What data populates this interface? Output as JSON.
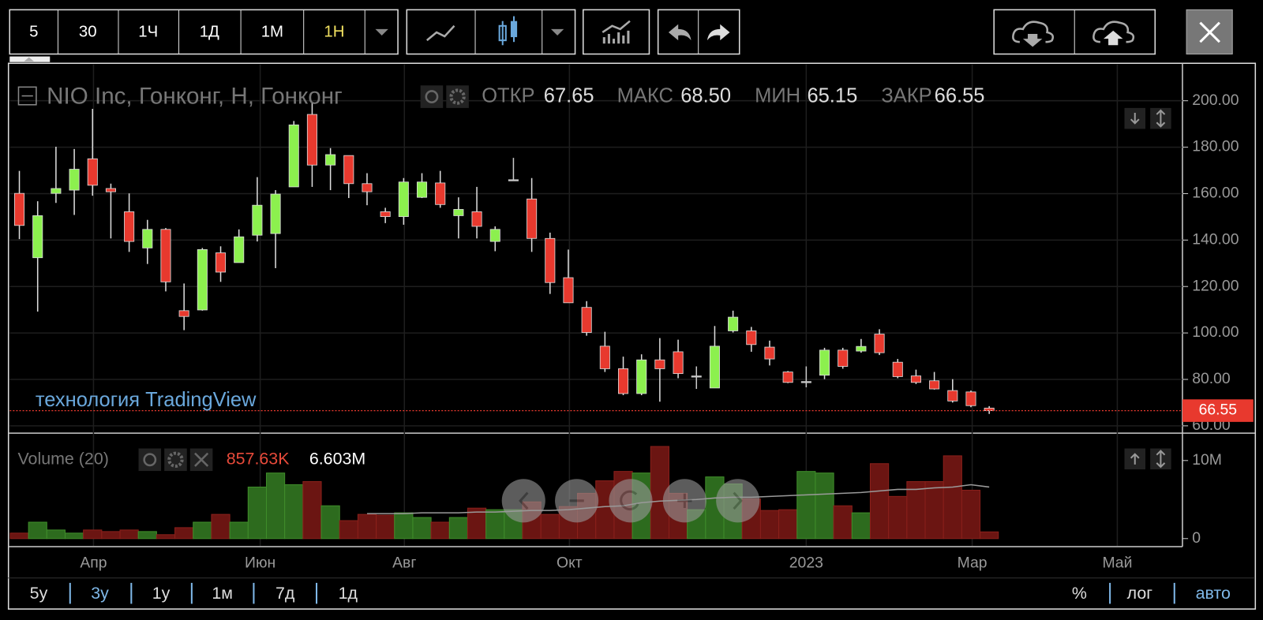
{
  "toolbar": {
    "intervals": [
      "5",
      "30",
      "1Ч",
      "1Д",
      "1М",
      "1Н"
    ]
  },
  "chart_data": [
    {
      "type": "candlestick",
      "title": "NIO Inc, Гонконг, Н, Гонконг",
      "ohlc_labels": [
        "ОТКР",
        "МАКС",
        "МИН",
        "ЗАКР"
      ],
      "header_values": [
        "67.65",
        "68.50",
        "65.15",
        "66.55"
      ],
      "open": [
        160.1,
        132.4,
        160.1,
        161.5,
        175.0,
        162.2,
        152.2,
        136.6,
        144.6,
        109.6,
        109.9,
        134.5,
        130.3,
        142.1,
        142.8,
        162.9,
        194.1,
        172.3,
        176.4,
        164.3,
        152.2,
        150.1,
        158.4,
        164.6,
        150.5,
        152.2,
        139.4,
        166.0,
        157.7,
        140.7,
        123.8,
        111.0,
        94.3,
        84.6,
        73.9,
        88.4,
        91.9,
        81.5,
        76.3,
        100.9,
        100.9,
        93.9,
        83.2,
        79.1,
        81.8,
        92.6,
        92.2,
        99.5,
        87.4,
        81.5,
        79.4,
        75.2,
        74.6,
        67.65
      ],
      "high": [
        169.8,
        156.7,
        180.2,
        179.2,
        196.5,
        164.3,
        160.1,
        148.7,
        145.2,
        121.3,
        136.6,
        137.3,
        144.6,
        167.1,
        161.5,
        191.3,
        199.3,
        179.6,
        176.4,
        168.8,
        153.9,
        166.7,
        168.8,
        169.8,
        158.4,
        162.9,
        145.9,
        175.4,
        166.7,
        143.2,
        135.9,
        113.7,
        100.5,
        89.8,
        90.8,
        97.8,
        97.1,
        85.6,
        103.0,
        109.6,
        102.6,
        96.7,
        83.6,
        85.6,
        93.6,
        93.6,
        97.4,
        101.6,
        88.8,
        84.2,
        83.2,
        80.1,
        75.2,
        68.5
      ],
      "low": [
        140.4,
        109.2,
        156.0,
        150.8,
        159.1,
        140.7,
        134.9,
        129.7,
        117.9,
        101.2,
        109.6,
        122.0,
        130.3,
        139.4,
        127.9,
        162.9,
        162.9,
        161.5,
        158.1,
        155.0,
        147.3,
        146.6,
        158.1,
        153.9,
        140.7,
        140.7,
        135.2,
        165.7,
        134.9,
        116.8,
        113.0,
        98.8,
        83.2,
        73.2,
        73.2,
        70.4,
        80.5,
        75.9,
        76.3,
        100.2,
        91.9,
        86.0,
        78.4,
        76.6,
        80.1,
        84.6,
        91.5,
        90.5,
        80.5,
        78.0,
        75.6,
        70.0,
        68.0,
        65.15
      ],
      "close": [
        146.3,
        150.5,
        162.2,
        170.5,
        163.6,
        160.8,
        139.4,
        144.6,
        122.0,
        107.1,
        135.9,
        126.2,
        141.4,
        155.0,
        159.8,
        189.6,
        172.3,
        176.8,
        164.3,
        160.8,
        150.1,
        165.0,
        165.0,
        155.3,
        153.2,
        145.9,
        144.6,
        166.0,
        140.7,
        121.7,
        113.0,
        100.2,
        84.6,
        73.9,
        88.4,
        84.6,
        82.5,
        81.5,
        94.3,
        106.8,
        95.0,
        88.8,
        78.7,
        79.1,
        92.6,
        85.6,
        94.2,
        91.5,
        81.2,
        78.7,
        75.9,
        70.7,
        68.7,
        66.55
      ],
      "up_color": "#8cf04e",
      "down_color": "#e8392e",
      "doji_color": "#c8c8c8",
      "xlim": [
        -0.53,
        63.56
      ],
      "xticks": [
        {
          "value": 4.05,
          "label": "Апр"
        },
        {
          "value": 13.16,
          "label": "Июн"
        },
        {
          "value": 21.04,
          "label": "Авг"
        },
        {
          "value": 30.06,
          "label": "Окт"
        },
        {
          "value": 43.0,
          "label": "2023"
        },
        {
          "value": 52.07,
          "label": "Мар"
        },
        {
          "value": 60.0,
          "label": "Май"
        }
      ],
      "ylim": [
        57.2,
        215.6
      ],
      "yticks": [
        {
          "value": 60,
          "label": "60.00"
        },
        {
          "value": 80,
          "label": "80.00"
        },
        {
          "value": 100,
          "label": "100.00"
        },
        {
          "value": 120,
          "label": "120.00"
        },
        {
          "value": 140,
          "label": "140.00"
        },
        {
          "value": 160,
          "label": "160.00"
        },
        {
          "value": 180,
          "label": "180.00"
        },
        {
          "value": 200,
          "label": "200.00"
        }
      ],
      "grid": true
    },
    {
      "type": "bar",
      "title": "Volume (20)",
      "values": [
        700000,
        2100000,
        1100000,
        700000,
        1100000,
        900000,
        1100000,
        900000,
        500000,
        1400000,
        2100000,
        3100000,
        2100000,
        6600000,
        8400000,
        6900000,
        7300000,
        4200000,
        2300000,
        3100000,
        3000000,
        3300000,
        2700000,
        2100000,
        2700000,
        3900000,
        3700000,
        3700000,
        4700000,
        3100000,
        4100000,
        5800000,
        7400000,
        8600000,
        8400000,
        11800000,
        5800000,
        3700000,
        7900000,
        7000000,
        5100000,
        3600000,
        3700000,
        8600000,
        8400000,
        4200000,
        3300000,
        9600000,
        5400000,
        7300000,
        7300000,
        10600000,
        6200000,
        857630
      ],
      "value_labels": [
        null,
        null,
        null,
        null,
        null,
        null,
        null,
        null,
        null,
        null,
        null,
        null,
        null,
        null,
        null,
        null,
        null,
        null,
        null,
        null,
        null,
        null,
        null,
        null,
        null,
        null,
        null,
        null,
        null,
        null,
        null,
        null,
        null,
        null,
        null,
        null,
        null,
        null,
        null,
        null,
        null,
        null,
        null,
        null,
        null,
        null,
        null,
        null,
        null,
        null,
        null,
        null,
        null,
        "857.63K"
      ],
      "ma": {
        "color": "#9a9a9a",
        "values": [
          null,
          null,
          null,
          null,
          null,
          null,
          null,
          null,
          null,
          null,
          null,
          null,
          null,
          null,
          null,
          null,
          null,
          null,
          null,
          3200000,
          3200000,
          3200000,
          3300000,
          3300000,
          3300000,
          3400000,
          3400000,
          3500000,
          3600000,
          3600000,
          3700000,
          3900000,
          4100000,
          4200000,
          4600000,
          4800000,
          4900000,
          5000000,
          5200000,
          5300000,
          5300000,
          5400000,
          5500000,
          5600000,
          5700000,
          5800000,
          5900000,
          6100000,
          6300000,
          6300000,
          6500000,
          6600000,
          6900000,
          6603000
        ],
        "value_labels": [
          null,
          null,
          null,
          null,
          null,
          null,
          null,
          null,
          null,
          null,
          null,
          null,
          null,
          null,
          null,
          null,
          null,
          null,
          null,
          null,
          null,
          null,
          null,
          null,
          null,
          null,
          null,
          null,
          null,
          null,
          null,
          null,
          null,
          null,
          null,
          null,
          null,
          null,
          null,
          null,
          null,
          null,
          null,
          null,
          null,
          null,
          null,
          null,
          null,
          null,
          null,
          null,
          null,
          "6.603M"
        ]
      },
      "up_color": "#2d6b1e",
      "down_color": "#6b1512",
      "ylim": [
        -930000,
        13300000
      ],
      "yticks": [
        0,
        {
          "value": 10000000,
          "label": "10M"
        }
      ]
    }
  ],
  "watermark": "технология TradingView",
  "ranges": [
    "5y",
    "3y",
    "1y",
    "1м",
    "7д",
    "1д"
  ],
  "scale_options": [
    "%",
    "лог",
    "авто"
  ]
}
